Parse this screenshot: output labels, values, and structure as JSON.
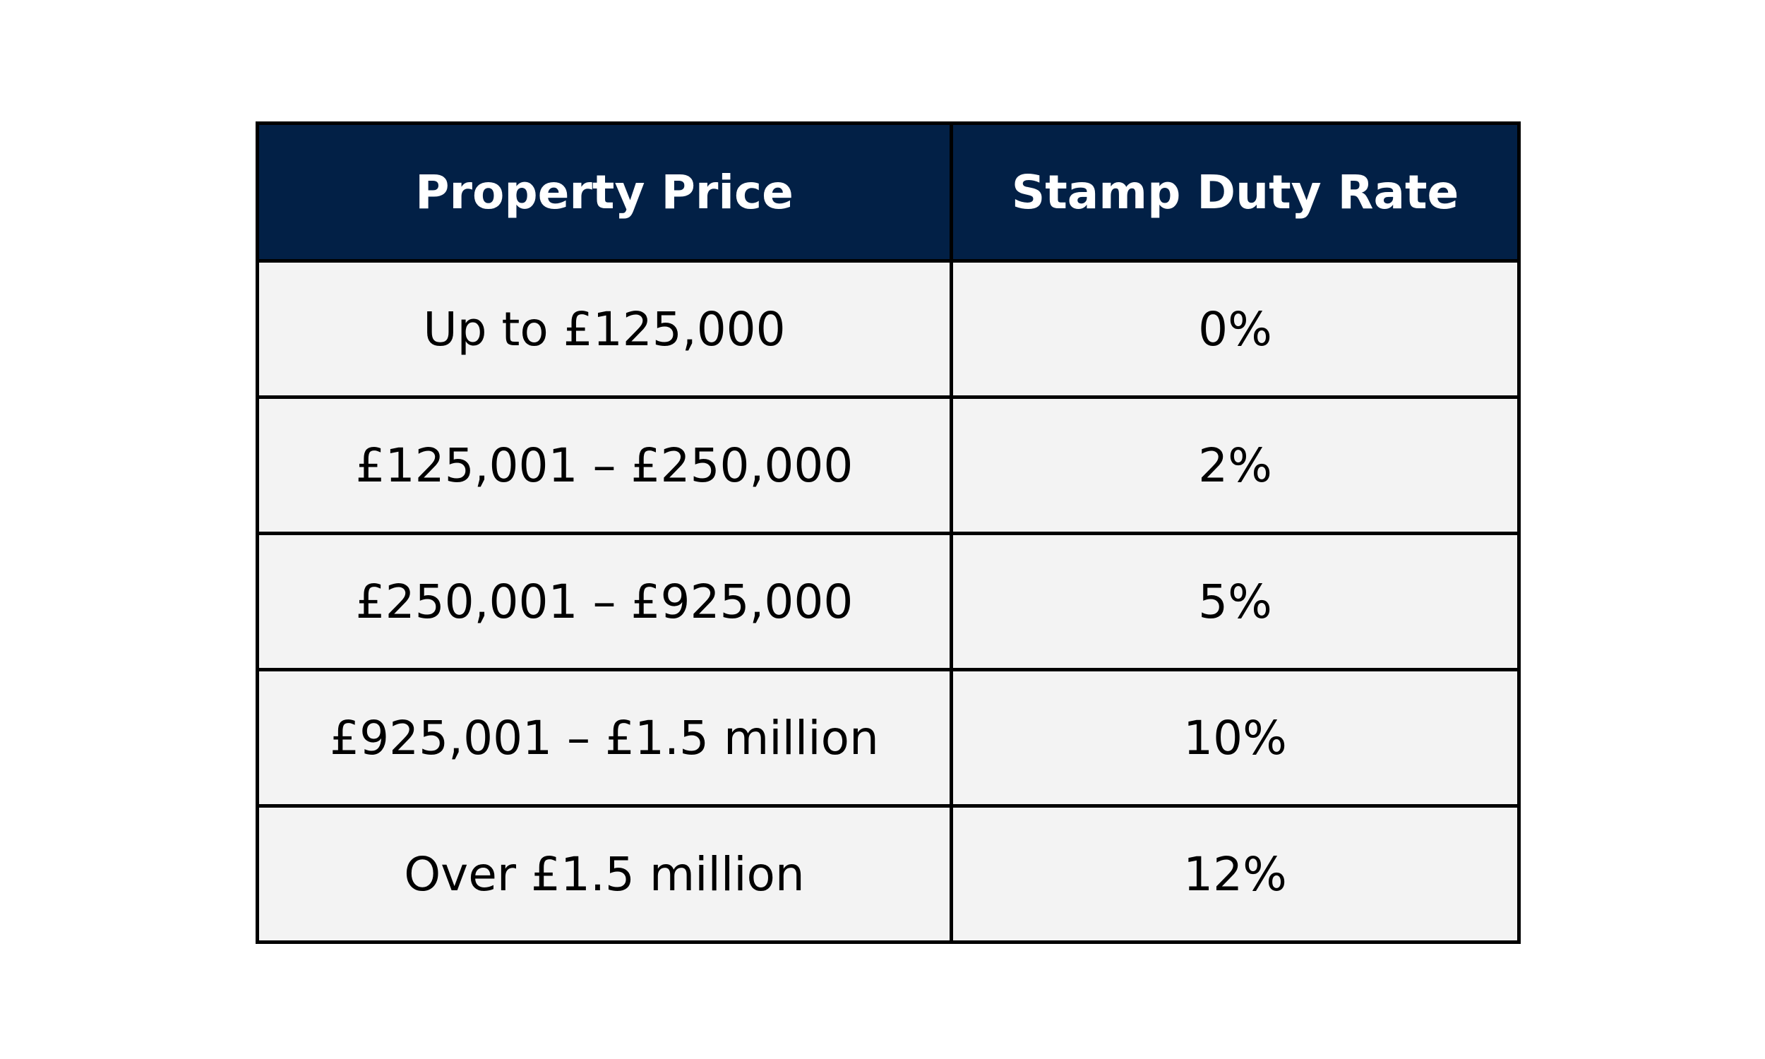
{
  "table": {
    "headers": [
      "Property Price",
      "Stamp Duty Rate"
    ],
    "rows": [
      [
        "Up to £125,000",
        "0%"
      ],
      [
        "£125,001 – £250,000",
        "2%"
      ],
      [
        "£250,001 – £925,000",
        "5%"
      ],
      [
        "£925,001 – £1.5 million",
        "10%"
      ],
      [
        "Over £1.5 million",
        "12%"
      ]
    ],
    "colors": {
      "header_background": "#022046",
      "header_text": "#ffffff",
      "cell_background": "#f3f3f3",
      "border": "#000000",
      "cell_text": "#000000"
    }
  }
}
